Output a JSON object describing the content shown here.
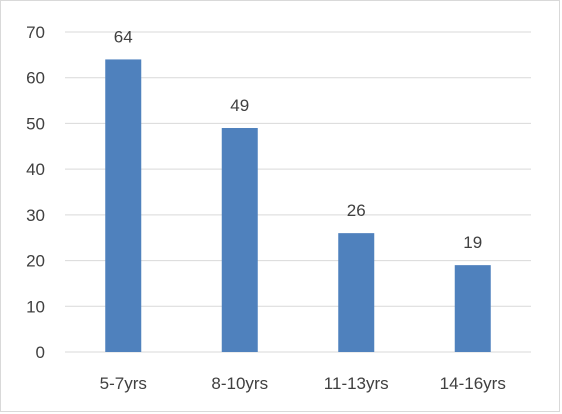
{
  "chart_data": {
    "type": "bar",
    "categories": [
      "5-7yrs",
      "8-10yrs",
      "11-13yrs",
      "14-16yrs"
    ],
    "values": [
      64,
      49,
      26,
      19
    ],
    "data_labels": [
      "64",
      "49",
      "26",
      "19"
    ],
    "y_ticks": [
      "0",
      "10",
      "20",
      "30",
      "40",
      "50",
      "60",
      "70"
    ],
    "ylim": [
      0,
      70
    ],
    "grid": true,
    "legend": "none",
    "bar_color": "#4f81bd",
    "grid_color": "#d9d9d9",
    "text_color": "#404040"
  }
}
